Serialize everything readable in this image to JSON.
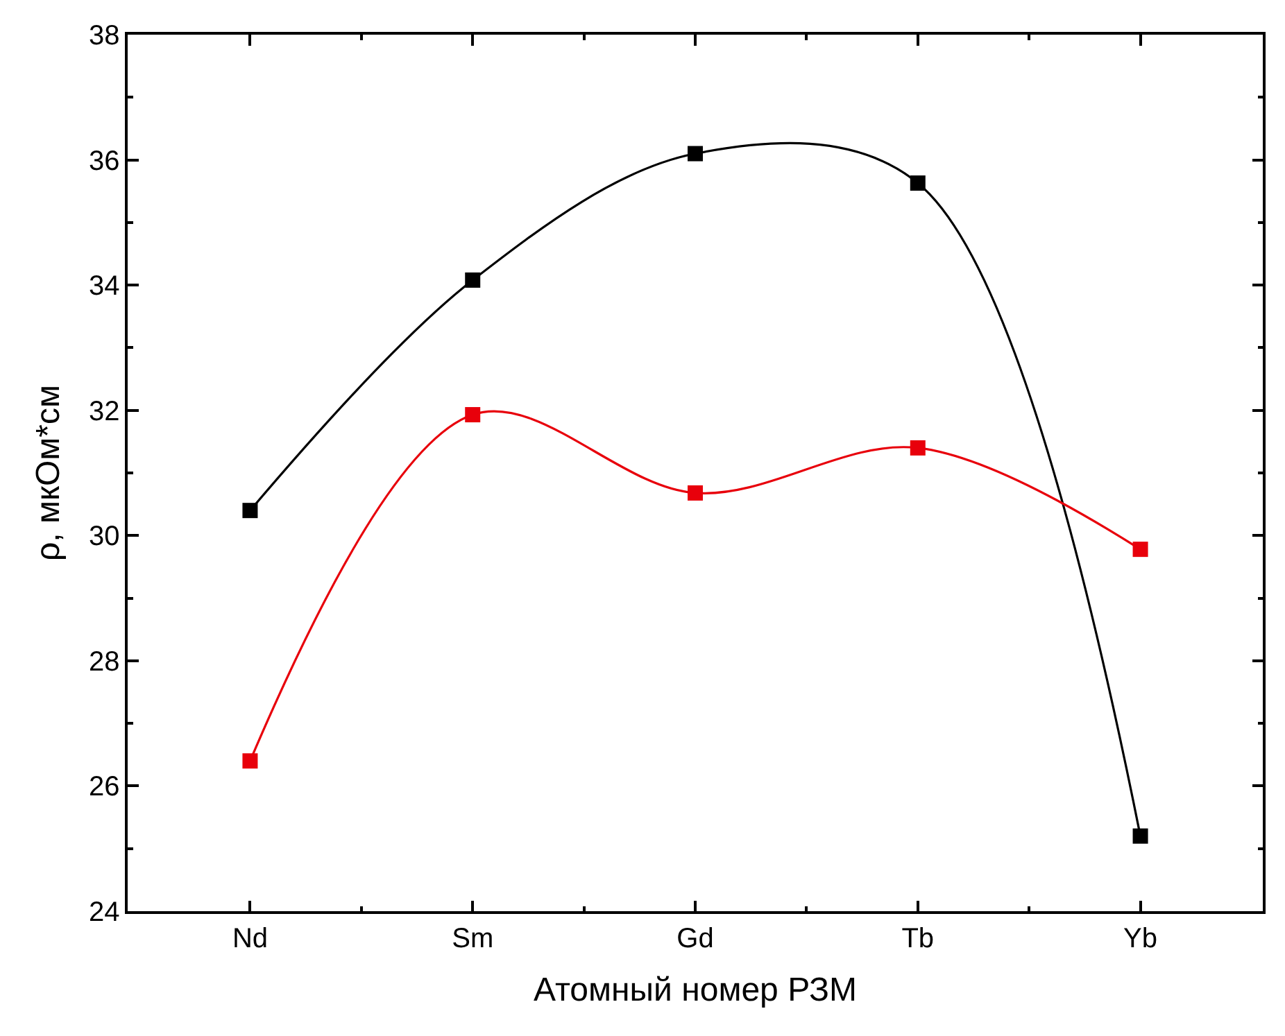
{
  "chart_data": {
    "type": "line",
    "xlabel": "Атомный номер РЗМ",
    "ylabel": "ρ, мкОм*см",
    "categories": [
      "Nd",
      "Sm",
      "Gd",
      "Tb",
      "Yb"
    ],
    "series": [
      {
        "color": "#000000",
        "values": [
          30.4,
          34.08,
          36.1,
          35.63,
          25.2
        ]
      },
      {
        "color": "#e8000b",
        "values": [
          26.4,
          31.93,
          30.68,
          31.4,
          29.78
        ]
      }
    ],
    "ylim": [
      24,
      38
    ],
    "yticks": [
      24,
      26,
      28,
      30,
      32,
      34,
      36,
      38
    ],
    "grid": false,
    "legend": false,
    "marker": "square",
    "line_style": "solid"
  }
}
